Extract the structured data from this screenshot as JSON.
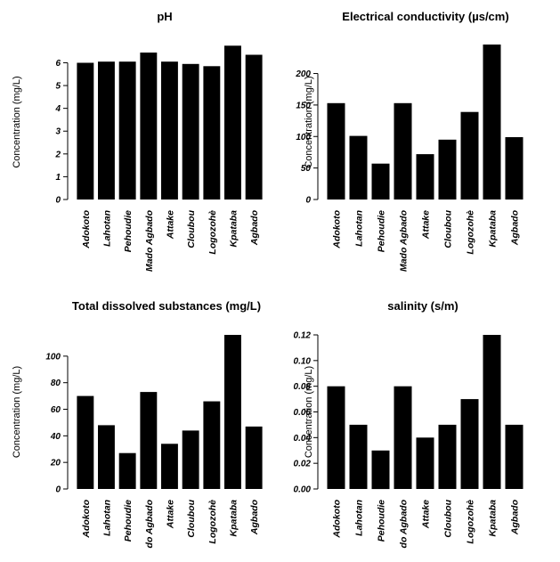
{
  "chart_data": [
    {
      "type": "bar",
      "title": "pH",
      "ylabel": "Concentration (mg/L)",
      "xlabel": "",
      "categories": [
        "Adokoto",
        "Lahotan",
        "Pehoudie",
        "Mado Agbado",
        "Attake",
        "Cloubou",
        "Logozohè",
        "Kpataba",
        "Agbado"
      ],
      "values": [
        6.0,
        6.05,
        6.05,
        6.45,
        6.05,
        5.95,
        5.85,
        6.75,
        6.35
      ],
      "ylim": [
        0,
        6.8
      ],
      "yticks": [
        0,
        1,
        2,
        3,
        4,
        5,
        6
      ],
      "ytick_labels": [
        "0",
        "1",
        "2",
        "3",
        "4",
        "5",
        "6"
      ]
    },
    {
      "type": "bar",
      "title": "Electrical conductivity (µs/cm)",
      "ylabel": "Concentration (mg/L)",
      "xlabel": "",
      "categories": [
        "Adokoto",
        "Lahotan",
        "Pehoudie",
        "Mado Agbado",
        "Attake",
        "Cloubou",
        "Logozohè",
        "Kpataba",
        "Agbado"
      ],
      "values": [
        153,
        101,
        57,
        153,
        72,
        95,
        139,
        246,
        99
      ],
      "ylim": [
        0,
        246
      ],
      "yticks": [
        0,
        50,
        100,
        150,
        200
      ],
      "ytick_labels": [
        "0",
        "50",
        "100",
        "150",
        "200"
      ]
    },
    {
      "type": "bar",
      "title": "Total dissolved substances (mg/L)",
      "ylabel": "Concentration (mg/L)",
      "xlabel": "",
      "categories": [
        "Adokoto",
        "Lahotan",
        "Pehoudie",
        "do Agbado",
        "Attake",
        "Cloubou",
        "Logozohè",
        "Kpataba",
        "Agbado"
      ],
      "values": [
        70,
        48,
        27,
        73,
        34,
        44,
        66,
        116,
        47
      ],
      "ylim": [
        0,
        116
      ],
      "yticks": [
        0,
        20,
        40,
        60,
        80,
        100
      ],
      "ytick_labels": [
        "0",
        "20",
        "40",
        "60",
        "80",
        "100"
      ]
    },
    {
      "type": "bar",
      "title": "salinity (s/m)",
      "ylabel": "Concentration (mg/L)",
      "xlabel": "",
      "categories": [
        "Adokoto",
        "Lahotan",
        "Pehoudie",
        "do Agbado",
        "Attake",
        "Cloubou",
        "Logozohè",
        "Kpataba",
        "Agbado"
      ],
      "values": [
        0.08,
        0.05,
        0.03,
        0.08,
        0.04,
        0.05,
        0.07,
        0.12,
        0.05
      ],
      "ylim": [
        0,
        0.12
      ],
      "yticks": [
        0,
        0.02,
        0.04,
        0.06,
        0.08,
        0.1,
        0.12
      ],
      "ytick_labels": [
        "0.00",
        "0.02",
        "0.04",
        "0.06",
        "0.08",
        "0.10",
        "0.12"
      ]
    }
  ]
}
